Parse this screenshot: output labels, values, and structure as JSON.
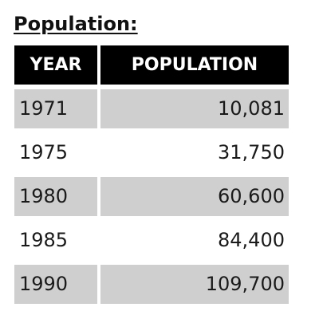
{
  "title": "Population:",
  "table": {
    "header": [
      "YEAR",
      "POPULATION"
    ],
    "rows": [
      [
        "1971",
        "10,081"
      ],
      [
        "1975",
        "31,750"
      ],
      [
        "1980",
        "60,600"
      ],
      [
        "1985",
        "84,400"
      ],
      [
        "1990",
        "109,700"
      ]
    ]
  }
}
